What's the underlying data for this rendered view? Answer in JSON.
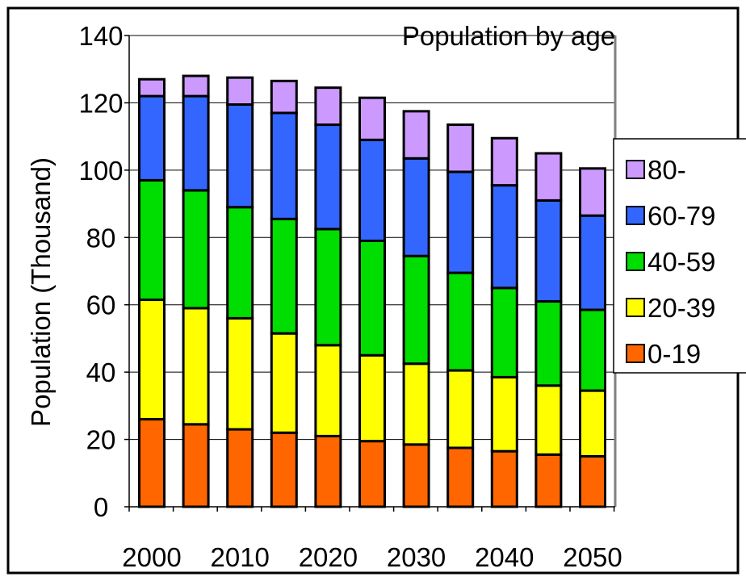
{
  "chart_data": {
    "type": "bar",
    "stacked": true,
    "title": "Population by age",
    "xlabel": "",
    "ylabel": "Population (Thousand)",
    "ylim": [
      0,
      140
    ],
    "yticks": [
      0,
      20,
      40,
      60,
      80,
      100,
      120,
      140
    ],
    "grid": true,
    "legend_position": "right",
    "categories": [
      "2000",
      "2005",
      "2010",
      "2015",
      "2020",
      "2025",
      "2030",
      "2035",
      "2040",
      "2045",
      "2050"
    ],
    "x_tick_labels": [
      "2000",
      "2010",
      "2020",
      "2030",
      "2040",
      "2050"
    ],
    "series": [
      {
        "name": "0-19",
        "color": "#FF6600",
        "values": [
          26,
          24.5,
          23,
          22,
          21,
          19.5,
          18.5,
          17.5,
          16.5,
          15.5,
          15
        ]
      },
      {
        "name": "20-39",
        "color": "#FFFF00",
        "values": [
          35.5,
          34.5,
          33,
          29.5,
          27,
          25.5,
          24,
          23,
          22,
          20.5,
          19.5
        ]
      },
      {
        "name": "40-59",
        "color": "#00DD00",
        "values": [
          35.5,
          35,
          33,
          34,
          34.5,
          34,
          32,
          29,
          26.5,
          25,
          24
        ]
      },
      {
        "name": "60-79",
        "color": "#3366FF",
        "values": [
          25,
          28,
          30.5,
          31.5,
          31,
          30,
          29,
          30,
          30.5,
          30,
          28
        ]
      },
      {
        "name": "80-",
        "color": "#CC99FF",
        "values": [
          5,
          6,
          8,
          9.5,
          11,
          12.5,
          14,
          14,
          14,
          14,
          14
        ]
      }
    ]
  }
}
